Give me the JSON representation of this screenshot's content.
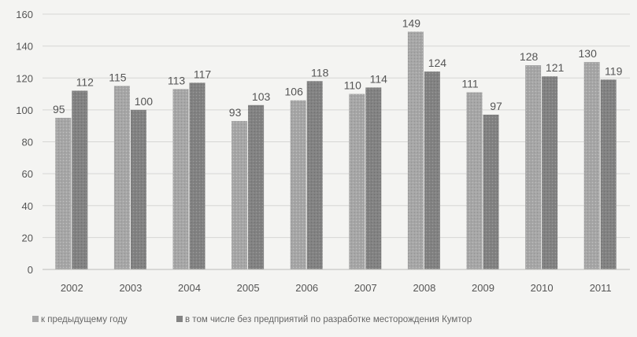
{
  "chart_data": {
    "type": "bar",
    "categories": [
      "2002",
      "2003",
      "2004",
      "2005",
      "2006",
      "2007",
      "2008",
      "2009",
      "2010",
      "2011"
    ],
    "series": [
      {
        "name": "к предыдущему году",
        "values": [
          95,
          115,
          113,
          93,
          106,
          110,
          149,
          111,
          128,
          130
        ],
        "color": "#a8a8a8"
      },
      {
        "name": "в том числе без предприятий по разработке месторождения Кумтор",
        "values": [
          112,
          100,
          117,
          103,
          118,
          114,
          124,
          97,
          121,
          119
        ],
        "color": "#838383"
      }
    ],
    "yticks": [
      "0",
      "20",
      "40",
      "60",
      "80",
      "100",
      "120",
      "140",
      "160"
    ],
    "ylim": [
      0,
      160
    ],
    "grid": true,
    "legend_position": "bottom",
    "background": "#f4f4f2",
    "grid_color": "#d6d6d4",
    "axis_color": "#bdbdbb",
    "label_color": "#555555"
  }
}
